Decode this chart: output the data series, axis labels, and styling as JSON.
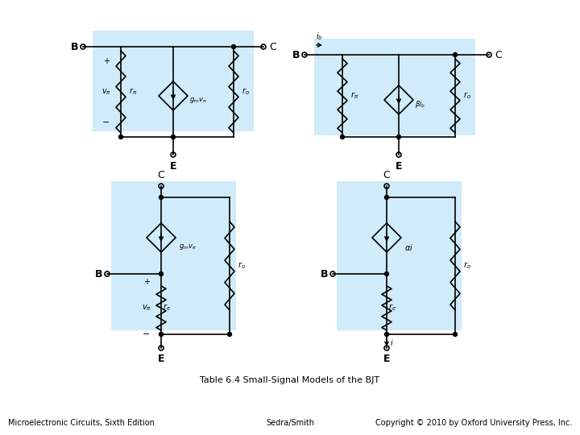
{
  "title": "Table 6.4 Small-Signal Models of the BJT",
  "footer_left": "Microelectronic Circuits, Sixth Edition",
  "footer_center": "Sedra/Smith",
  "footer_right": "Copyright © 2010 by Oxford University Press, Inc.",
  "bg_color": "#c8e8f8",
  "circuit_line_color": "#000000"
}
